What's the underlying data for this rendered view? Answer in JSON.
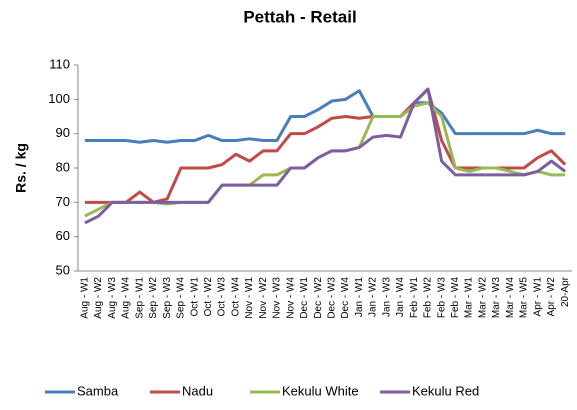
{
  "chart_data": {
    "type": "line",
    "title": "Pettah - Retail",
    "y_label": "Rs. / kg",
    "categories": [
      "Aug - W1",
      "Aug - W2",
      "Aug - W3",
      "Aug - W4",
      "Sep - W1",
      "Sep - W2",
      "Sep - W3",
      "Sep - W4",
      "Oct - W1",
      "Oct - W2",
      "Oct - W3",
      "Oct - W4",
      "Nov - W1",
      "Nov - W2",
      "Nov - W3",
      "Nov - W4",
      "Dec - W1",
      "Dec - W2",
      "Dec - W3",
      "Dec - W4",
      "Jan - W1",
      "Jan - W2",
      "Jan - W3",
      "Jan - W4",
      "Feb - W1",
      "Feb - W2",
      "Feb - W3",
      "Feb - W4",
      "Mar - W1",
      "Mar - W2",
      "Mar - W3",
      "Mar - W4",
      "Mar - W5",
      "Apr - W1",
      "Apr - W2",
      "20-Apr"
    ],
    "series": [
      {
        "name": "Samba",
        "color": "#4a7ebb",
        "values": [
          88,
          88,
          88,
          88,
          87.5,
          88,
          87.5,
          88,
          88,
          89.5,
          88,
          88,
          88.5,
          88,
          88,
          95,
          95,
          97,
          99.5,
          100,
          102.5,
          95,
          95,
          95,
          99,
          99,
          96,
          90,
          90,
          90,
          90,
          90,
          90,
          91,
          90,
          90
        ]
      },
      {
        "name": "Nadu",
        "color": "#be4b48",
        "values": [
          70,
          70,
          70,
          70,
          73,
          70,
          71,
          80,
          80,
          80,
          81,
          84,
          82,
          85,
          85,
          90,
          90,
          92,
          94.5,
          95,
          94.5,
          95,
          95,
          95,
          99,
          103,
          88,
          80,
          80,
          80,
          80,
          80,
          80,
          83,
          85,
          81
        ]
      },
      {
        "name": "Kekulu White",
        "color": "#98b954",
        "values": [
          66,
          68,
          70,
          70,
          70,
          70,
          69.5,
          70,
          70,
          70,
          75,
          75,
          75,
          78,
          78,
          80,
          80,
          83,
          85,
          85,
          86,
          95,
          95,
          95,
          98,
          99,
          95,
          80,
          79,
          80,
          80,
          79,
          78,
          79,
          78,
          78
        ]
      },
      {
        "name": "Kekulu Red",
        "color": "#7d5fa0",
        "values": [
          64,
          66,
          70,
          70,
          70,
          70,
          70,
          70,
          70,
          70,
          75,
          75,
          75,
          75,
          75,
          80,
          80,
          83,
          85,
          85,
          86,
          89,
          89.5,
          89,
          99,
          103,
          82,
          78,
          78,
          78,
          78,
          78,
          78,
          79,
          82,
          79
        ]
      }
    ],
    "ylim": [
      50,
      110
    ],
    "yticks": [
      50,
      60,
      70,
      80,
      90,
      100,
      110
    ],
    "grid": false,
    "legend": "bottom"
  }
}
